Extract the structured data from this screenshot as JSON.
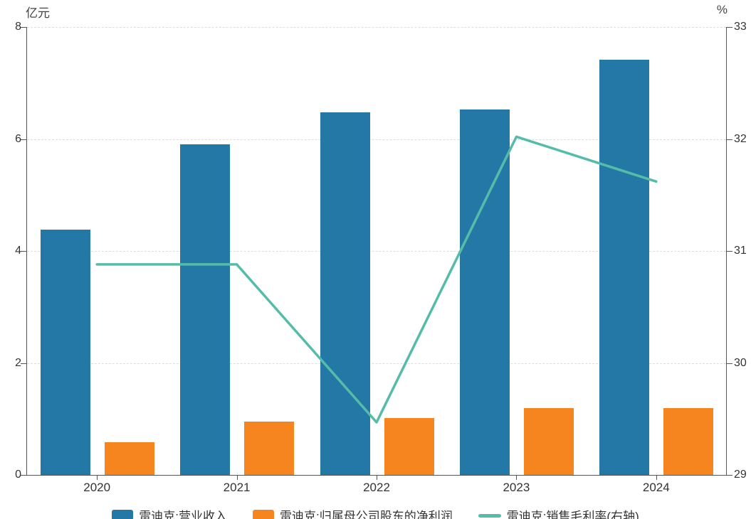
{
  "chart_data": {
    "type": "bar",
    "subtype": "combo-bar-line",
    "title": "",
    "categories": [
      "2020",
      "2021",
      "2022",
      "2023",
      "2024"
    ],
    "series": [
      {
        "key": "revenue",
        "name": "雷迪克:营业收入",
        "type": "bar",
        "axis": "left",
        "color": "#2478A5",
        "values": [
          4.38,
          5.91,
          6.47,
          6.53,
          7.41
        ]
      },
      {
        "key": "profit",
        "name": "雷迪克:归属母公司股东的净利润",
        "type": "bar",
        "axis": "left",
        "color": "#F6851F",
        "values": [
          0.59,
          0.95,
          1.02,
          1.19,
          1.19
        ]
      },
      {
        "key": "margin",
        "name": "雷迪克:销售毛利率(右轴)",
        "type": "line",
        "axis": "right",
        "color": "#55BCAA",
        "values": [
          30.88,
          30.88,
          29.47,
          32.02,
          31.62
        ]
      }
    ],
    "left_axis": {
      "unit": "亿元",
      "min": 0,
      "max": 8,
      "ticks": [
        0,
        2,
        4,
        6,
        8
      ]
    },
    "right_axis": {
      "unit": "%",
      "min": 29,
      "max": 33,
      "ticks": [
        29,
        30,
        31,
        32,
        33
      ]
    },
    "grid": true,
    "legend_position": "bottom"
  }
}
